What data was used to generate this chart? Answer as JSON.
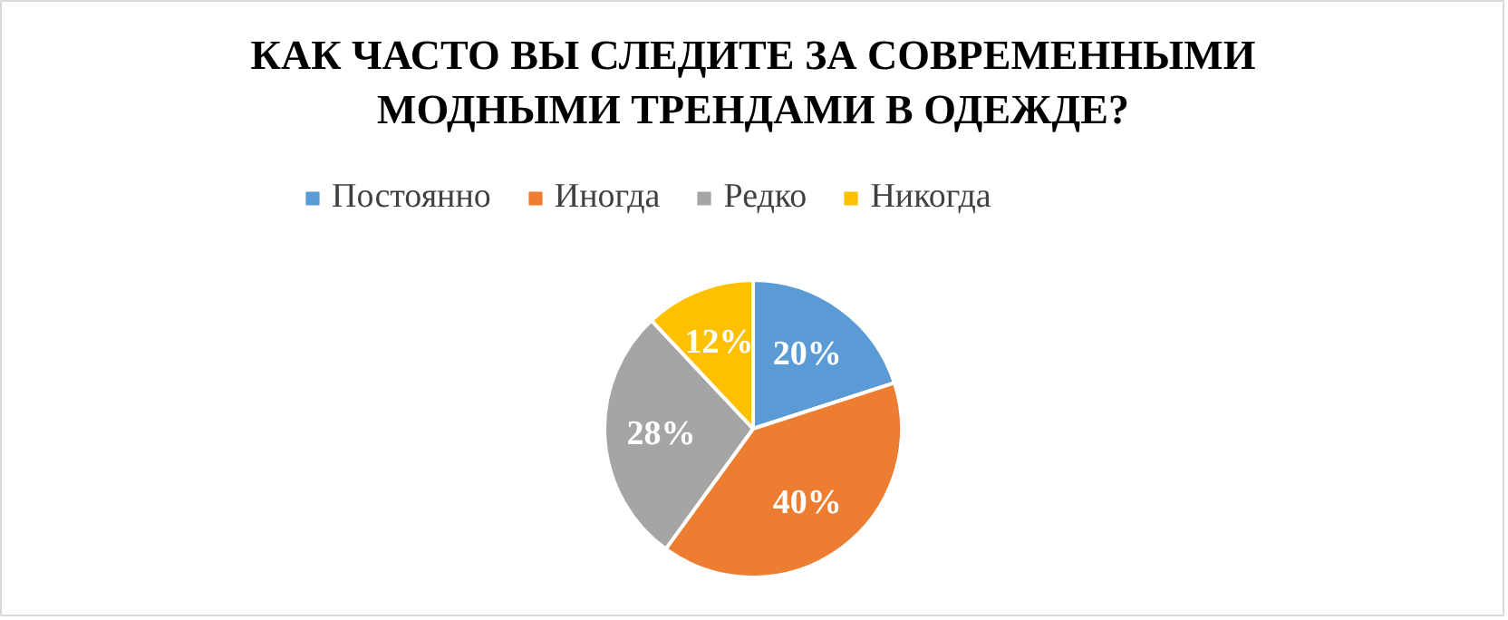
{
  "chart_data": {
    "type": "pie",
    "title": "КАК ЧАСТО ВЫ СЛЕДИТЕ ЗА СОВРЕМЕННЫМИ МОДНЫМИ ТРЕНДАМИ В ОДЕЖДЕ?",
    "categories": [
      "Постоянно",
      "Иногда",
      "Редко",
      "Никогда"
    ],
    "values": [
      20,
      40,
      28,
      12
    ],
    "colors": [
      "#5b9bd5",
      "#ed7d31",
      "#a5a5a5",
      "#ffc000"
    ],
    "value_labels": [
      "20%",
      "40%",
      "28%",
      "12%"
    ],
    "legend": "top"
  }
}
